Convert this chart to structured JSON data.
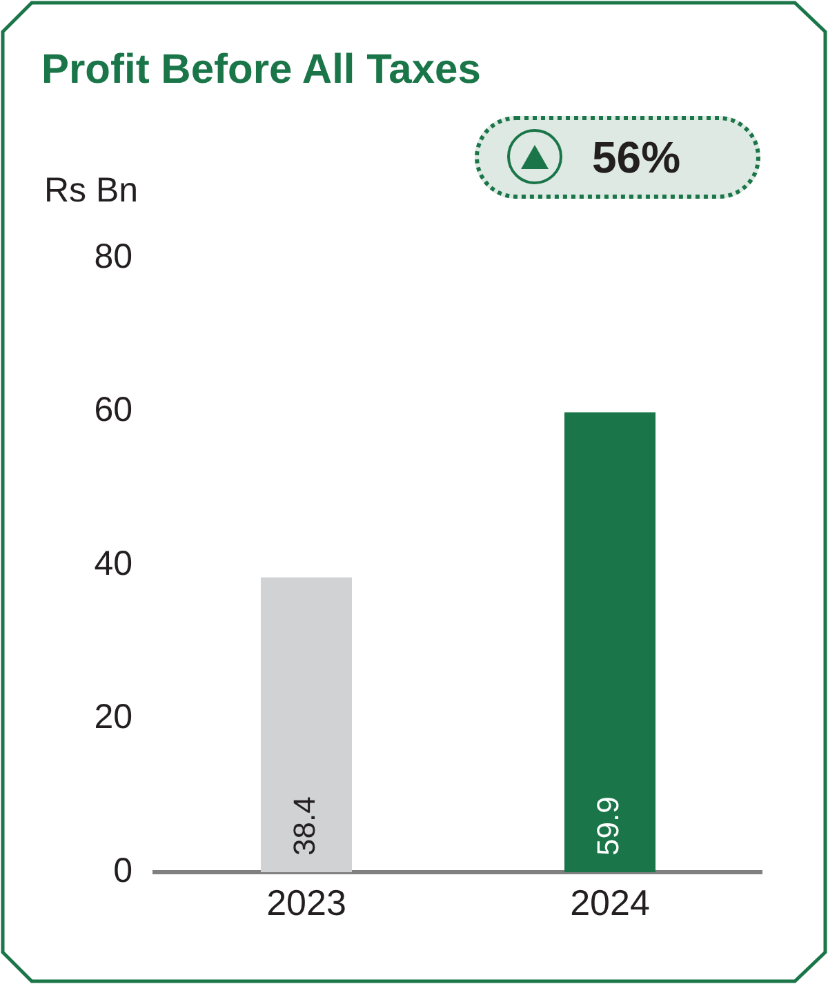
{
  "chart_data": {
    "type": "bar",
    "title": "Profit Before All Taxes",
    "ylabel": "Rs Bn",
    "annotations": [
      "56%"
    ],
    "categories": [
      "2023",
      "2024"
    ],
    "values": [
      38.4,
      59.9
    ],
    "colors": [
      "#d1d2d4",
      "#1a7548"
    ],
    "ylim": [
      0,
      80
    ],
    "yticks": [
      0,
      20,
      40,
      60,
      80
    ],
    "data_labels": true
  }
}
